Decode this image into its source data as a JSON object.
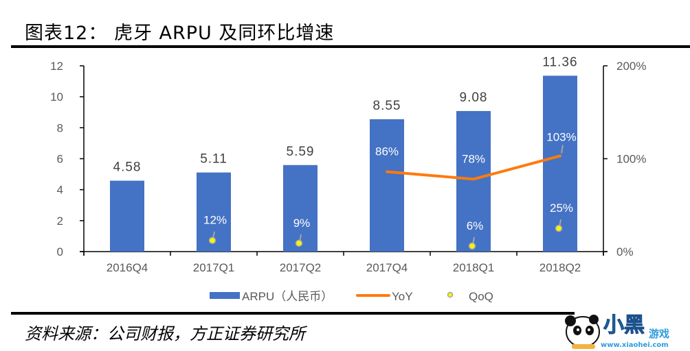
{
  "header": {
    "title": "图表12： 虎牙 ARPU 及同环比增速"
  },
  "footer": {
    "source": "资料来源：公司财报，方正证券研究所"
  },
  "watermark": {
    "text_main": "小黑",
    "text_sub": "游戏",
    "url": "www.xiaohei.com"
  },
  "colors": {
    "bar": "#4472C4",
    "yoy": "#FF7A0E",
    "qoq": "#F5F50A",
    "qoq_edge": "#A5A5A5",
    "axis": "#000000"
  },
  "chart_data": {
    "type": "bar",
    "title": "虎牙 ARPU 及同环比增速",
    "categories": [
      "2016Q4",
      "2017Q1",
      "2017Q2",
      "2017Q4",
      "2018Q1",
      "2018Q2"
    ],
    "series": [
      {
        "name": "ARPU（人民币）",
        "type": "bar",
        "axis": "left",
        "values": [
          4.58,
          5.11,
          5.59,
          8.55,
          9.08,
          11.36
        ],
        "labels": [
          "4.58",
          "5.11",
          "5.59",
          "8.55",
          "9.08",
          "11.36"
        ]
      },
      {
        "name": "YoY",
        "type": "line",
        "axis": "right",
        "values": [
          null,
          null,
          null,
          86,
          78,
          103
        ],
        "labels": [
          "",
          "",
          "",
          "86%",
          "78%",
          "103%"
        ]
      },
      {
        "name": "QoQ",
        "type": "scatter",
        "axis": "right",
        "values": [
          null,
          12,
          9,
          null,
          6,
          25
        ],
        "labels": [
          "",
          "12%",
          "9%",
          "",
          "6%",
          "25%"
        ]
      }
    ],
    "left_axis": {
      "ylim": [
        0,
        12
      ],
      "ticks": [
        "0",
        "2",
        "4",
        "6",
        "8",
        "10",
        "12"
      ]
    },
    "right_axis": {
      "ylim": [
        0,
        200
      ],
      "ticks": [
        "0%",
        "100%",
        "200%"
      ]
    },
    "legend": {
      "position": "bottom",
      "entries": [
        "ARPU（人民币）",
        "YoY",
        "QoQ"
      ]
    },
    "grid": false
  }
}
